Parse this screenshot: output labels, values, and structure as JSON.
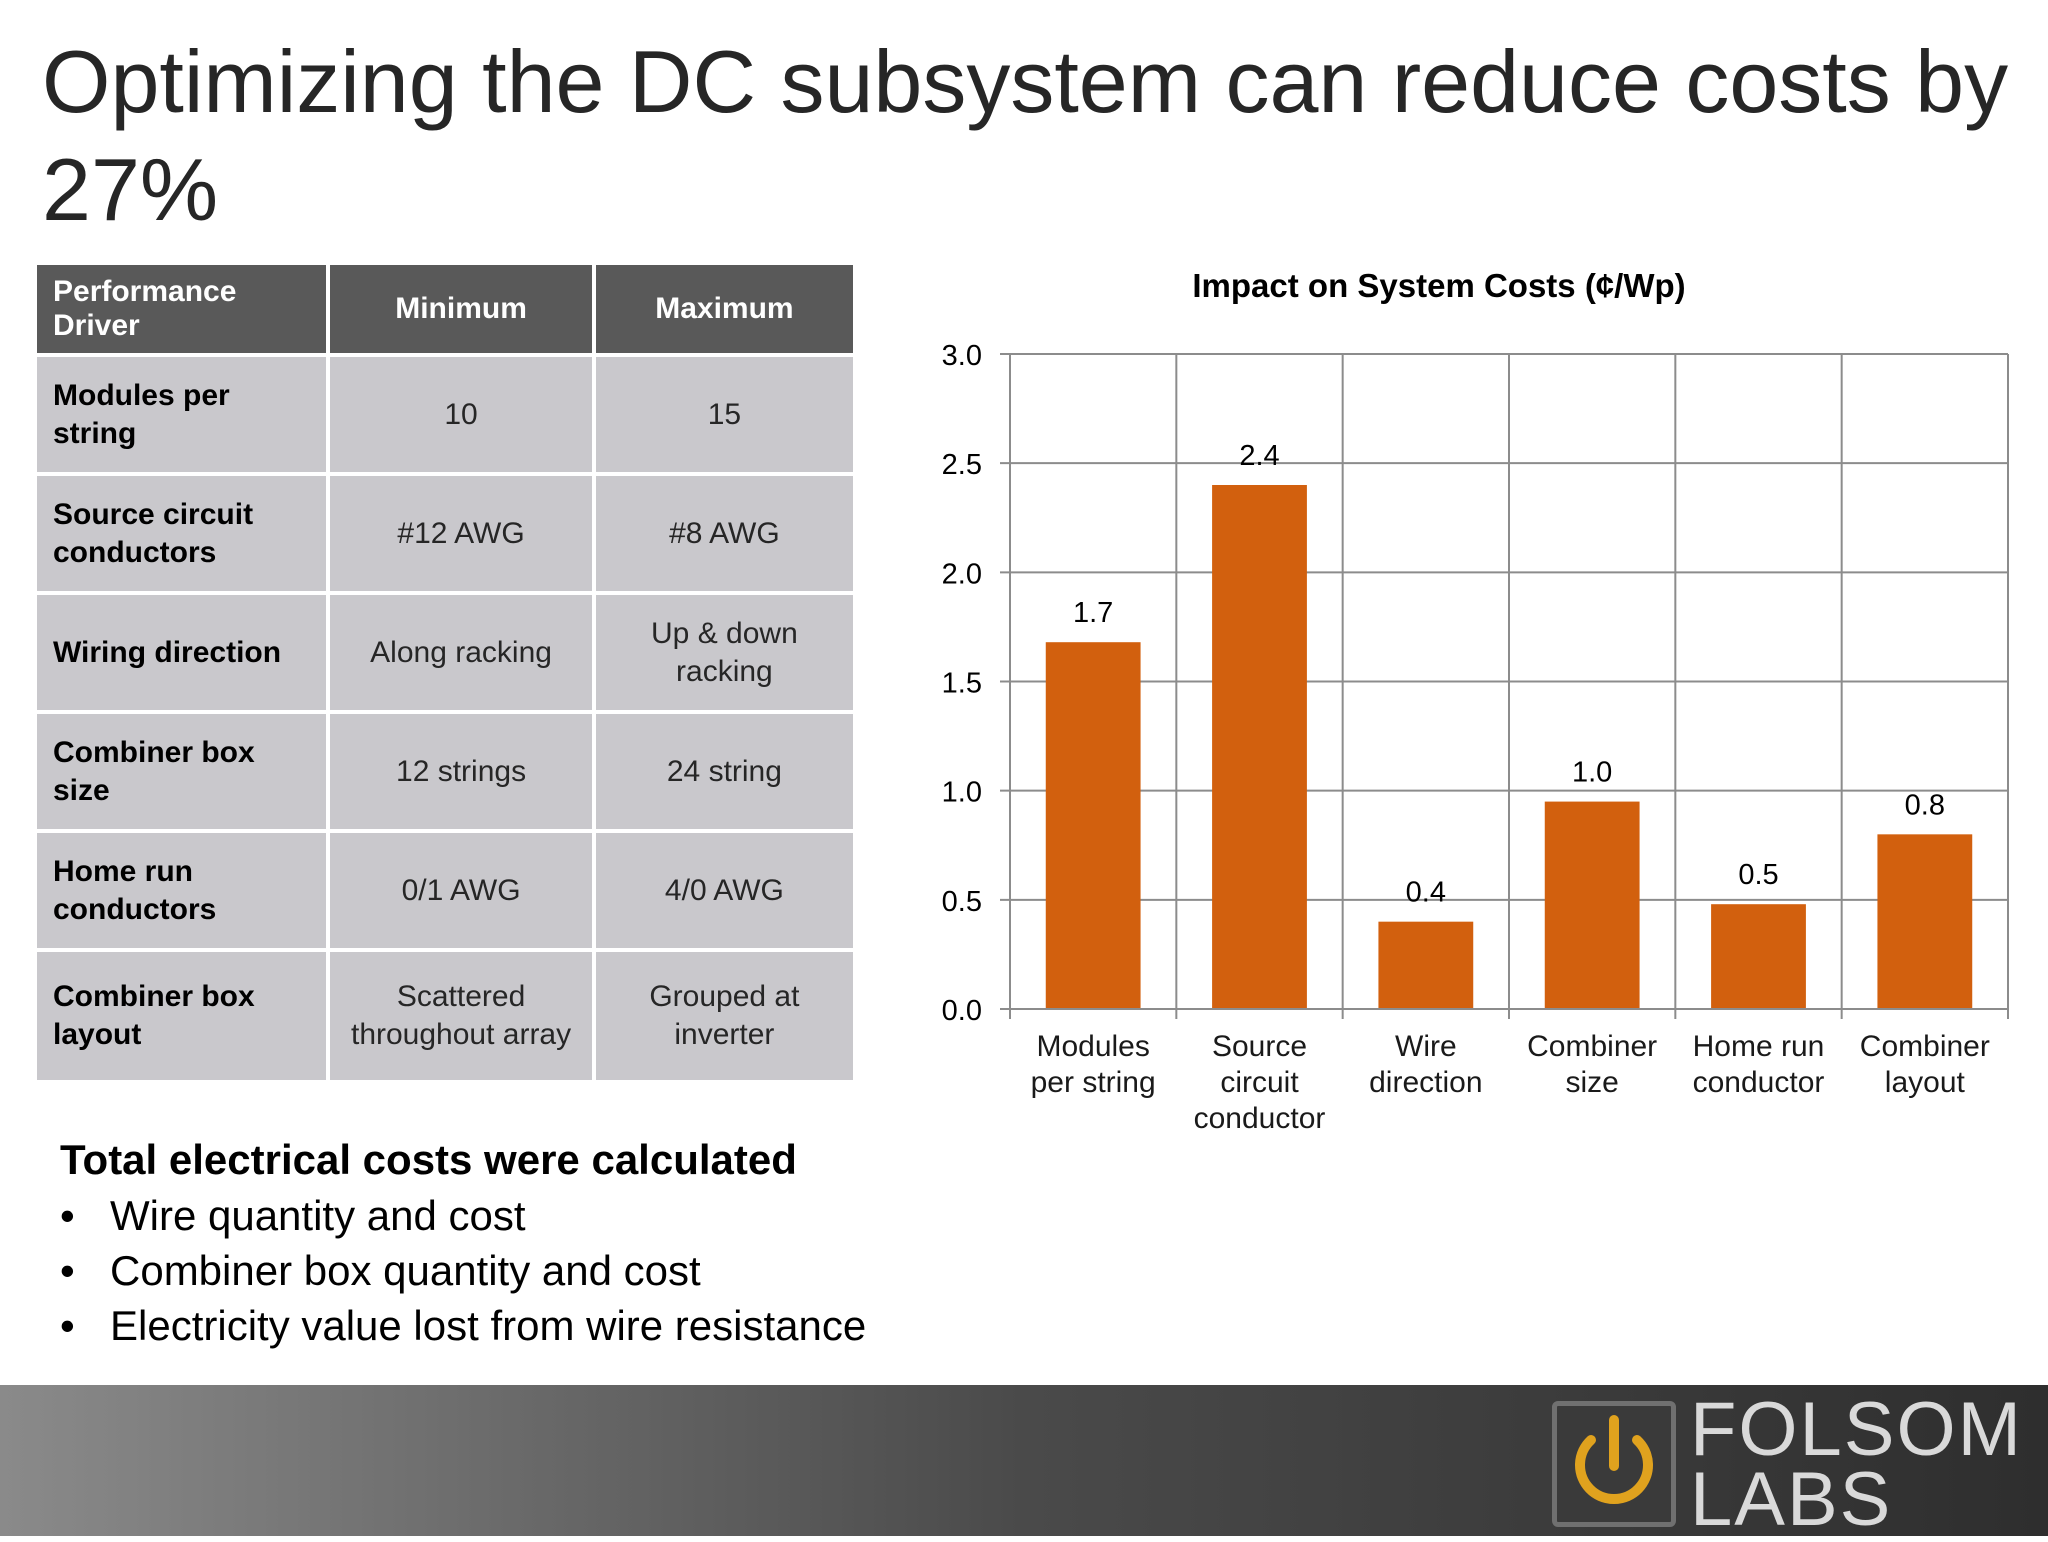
{
  "slide": {
    "title": "Optimizing the DC subsystem can reduce costs by 27%"
  },
  "table": {
    "headers": [
      "Performance Driver",
      "Minimum",
      "Maximum"
    ],
    "rows": [
      [
        "Modules per string",
        "10",
        "15"
      ],
      [
        "Source circuit conductors",
        "#12 AWG",
        "#8 AWG"
      ],
      [
        "Wiring direction",
        "Along racking",
        "Up & down racking"
      ],
      [
        "Combiner box size",
        "12 strings",
        "24 string"
      ],
      [
        "Home run conductors",
        "0/1 AWG",
        "4/0 AWG"
      ],
      [
        "Combiner box layout",
        "Scattered throughout array",
        "Grouped at inverter"
      ]
    ]
  },
  "notes": {
    "heading": "Total electrical costs were calculated",
    "bullet_char": "•",
    "items": [
      "Wire quantity and cost",
      "Combiner box quantity and cost",
      "Electricity value lost from wire resistance"
    ]
  },
  "logo": {
    "line1": "FOLSOM",
    "line2": "LABS",
    "accent": "#e0a21e",
    "icon": "power-icon"
  },
  "chart_data": {
    "type": "bar",
    "title": "Impact on System Costs  (¢/Wp)",
    "categories": [
      [
        "Modules",
        "per string"
      ],
      [
        "Source",
        "circuit",
        "conductor"
      ],
      [
        "Wire",
        "direction"
      ],
      [
        "Combiner",
        "size"
      ],
      [
        "Home run",
        "conductor"
      ],
      [
        "Combiner",
        "layout"
      ]
    ],
    "values": [
      1.68,
      2.4,
      0.4,
      0.95,
      0.48,
      0.8
    ],
    "data_labels": [
      "1.7",
      "2.4",
      "0.4",
      "1.0",
      "0.5",
      "0.8"
    ],
    "ylim": [
      0,
      3.0
    ],
    "yticks": [
      "0.0",
      "0.5",
      "1.0",
      "1.5",
      "2.0",
      "2.5",
      "3.0"
    ],
    "grid": true,
    "bar_color": "#d2600e",
    "xlabel": "",
    "ylabel": ""
  }
}
